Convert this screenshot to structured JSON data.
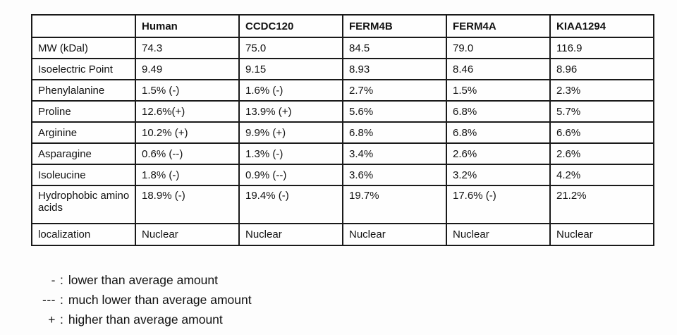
{
  "table": {
    "columns": [
      "",
      "Human",
      "CCDC120",
      "FERM4B",
      "FERM4A",
      "KIAA1294"
    ],
    "rows": [
      {
        "label": "MW (kDal)",
        "values": [
          "74.3",
          "75.0",
          "84.5",
          "79.0",
          "116.9"
        ]
      },
      {
        "label": "Isoelectric Point",
        "values": [
          "9.49",
          "9.15",
          "8.93",
          "8.46",
          "8.96"
        ]
      },
      {
        "label": "Phenylalanine",
        "values": [
          "1.5% (-)",
          "1.6% (-)",
          "2.7%",
          "1.5%",
          "2.3%"
        ]
      },
      {
        "label": "Proline",
        "values": [
          "12.6%(+)",
          "13.9% (+)",
          "5.6%",
          "6.8%",
          "5.7%"
        ]
      },
      {
        "label": "Arginine",
        "values": [
          "10.2% (+)",
          "9.9% (+)",
          "6.8%",
          "6.8%",
          "6.6%"
        ]
      },
      {
        "label": "Asparagine",
        "values": [
          "0.6% (--)",
          "1.3% (-)",
          "3.4%",
          "2.6%",
          "2.6%"
        ]
      },
      {
        "label": "Isoleucine",
        "values": [
          "1.8% (-)",
          "0.9% (--)",
          "3.6%",
          "3.2%",
          "4.2%"
        ]
      },
      {
        "label": "Hydrophobic amino acids",
        "values": [
          "18.9% (-)",
          "19.4% (-)",
          "19.7%",
          "17.6% (-)",
          "21.2%"
        ]
      },
      {
        "label": "localization",
        "values": [
          "Nuclear",
          "Nuclear",
          "Nuclear",
          "Nuclear",
          "Nuclear"
        ]
      }
    ]
  },
  "legend": {
    "separator": ":",
    "items": [
      {
        "symbol": "-",
        "text": "lower than average amount"
      },
      {
        "symbol": "---",
        "text": "much lower than average amount"
      },
      {
        "symbol": "+",
        "text": "higher than average amount"
      }
    ]
  }
}
